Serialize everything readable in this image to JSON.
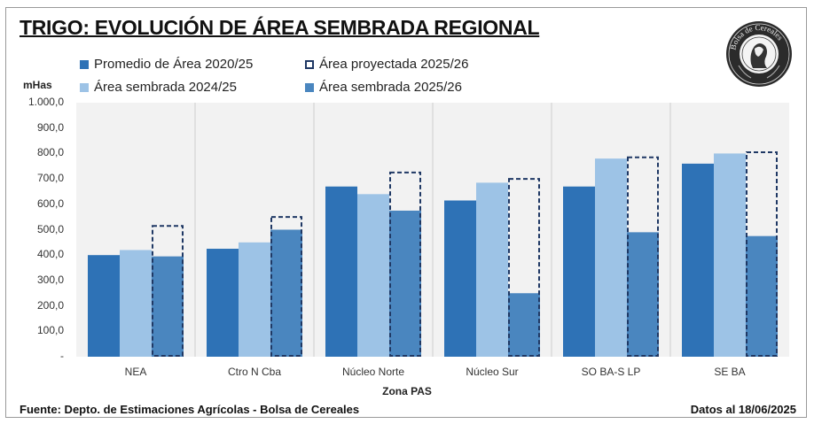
{
  "header": {
    "title": "TRIGO: EVOLUCIÓN DE ÁREA SEMBRADA REGIONAL",
    "logo_text": "Bolsa de Cereales"
  },
  "footer": {
    "source": "Fuente: Depto. de Estimaciones Agrícolas - Bolsa de Cereales",
    "date": "Datos al 18/06/2025"
  },
  "colors": {
    "promedio": "#2e72b6",
    "sembrada_2024": "#9dc3e6",
    "sembrada_2025": "#4a86bf",
    "proyectada_border": "#1f3864",
    "plot_bg": "#f2f2f2",
    "separator": "#d9d9d9"
  },
  "chart_data": {
    "type": "bar",
    "title": "TRIGO: EVOLUCIÓN DE ÁREA SEMBRADA REGIONAL",
    "xlabel": "Zona PAS",
    "ylabel": "mHas",
    "ylim": [
      0,
      1000
    ],
    "yticks": [
      0,
      100,
      200,
      300,
      400,
      500,
      600,
      700,
      800,
      900,
      1000
    ],
    "ytick_labels": [
      "-",
      "100,0",
      "200,0",
      "300,0",
      "400,0",
      "500,0",
      "600,0",
      "700,0",
      "800,0",
      "900,0",
      "1.000,0"
    ],
    "grid": false,
    "legend_position": "top",
    "categories": [
      "NEA",
      "Ctro N Cba",
      "Núcleo Norte",
      "Núcleo Sur",
      "SO BA-S LP",
      "SE BA"
    ],
    "series": [
      {
        "name": "Promedio de Área 2020/25",
        "key": "promedio",
        "style": "solid",
        "values": [
          400,
          425,
          670,
          615,
          670,
          760
        ]
      },
      {
        "name": "Área sembrada 2024/25",
        "key": "sembrada_2024",
        "style": "solid",
        "values": [
          420,
          450,
          640,
          685,
          780,
          800
        ]
      },
      {
        "name": "Área sembrada 2025/26",
        "key": "sembrada_2025",
        "style": "solid",
        "values": [
          395,
          500,
          575,
          250,
          490,
          475
        ]
      },
      {
        "name": "Área proyectada 2025/26",
        "key": "proyectada",
        "style": "dashed-outline",
        "values": [
          515,
          550,
          725,
          700,
          785,
          805
        ]
      }
    ]
  }
}
